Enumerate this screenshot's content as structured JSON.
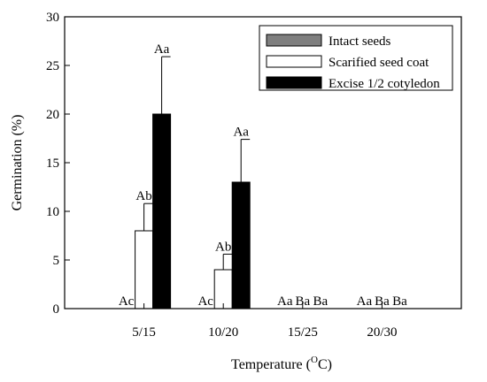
{
  "chart_data": {
    "type": "bar",
    "title": "",
    "xlabel": "Temperature (°C)",
    "xlabel_parts": {
      "prefix": "Temperature (",
      "superscript": "O",
      "unit": "C",
      "suffix": ")"
    },
    "ylabel": "Germination (%)",
    "ylim": [
      0,
      30
    ],
    "yticks": [
      0,
      5,
      10,
      15,
      20,
      25,
      30
    ],
    "grid": false,
    "legend_position": "top-right",
    "categories": [
      "5/15",
      "10/20",
      "15/25",
      "20/30"
    ],
    "series": [
      {
        "name": "Intact seeds",
        "color": "#7f7f7f",
        "values": [
          0,
          0,
          0,
          0
        ],
        "errors": [
          0,
          0,
          0,
          0
        ],
        "labels": [
          "Ac",
          "Ac",
          "Aa",
          "Aa"
        ]
      },
      {
        "name": "Scarified seed coat",
        "color": "#ffffff",
        "values": [
          8,
          4,
          0,
          0
        ],
        "errors": [
          2.8,
          1.6,
          0,
          0
        ],
        "labels": [
          "Ab",
          "Ab",
          "Ba",
          "Ba"
        ]
      },
      {
        "name": "Excise 1/2 cotyledon",
        "color": "#000000",
        "values": [
          20,
          13,
          0,
          0
        ],
        "errors": [
          5.9,
          4.4,
          0,
          0
        ],
        "labels": [
          "Aa",
          "Aa",
          "Ba",
          "Ba"
        ]
      }
    ]
  }
}
